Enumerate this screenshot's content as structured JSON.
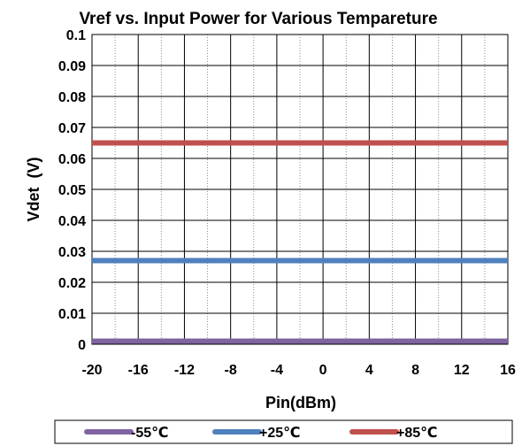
{
  "chart_data": {
    "type": "line",
    "title": "Vref vs. Input Power for Various Tempareture",
    "xlabel": "Pin(dBm)",
    "ylabel": "Vdet  (V)",
    "xlim": [
      -20,
      16
    ],
    "ylim": [
      0,
      0.1
    ],
    "x_ticks": [
      -20,
      -16,
      -12,
      -8,
      -4,
      0,
      4,
      8,
      12,
      16
    ],
    "x_tick_labels": [
      "-20",
      "-16",
      "-12",
      "-8",
      "-4",
      "0",
      "4",
      "8",
      "12",
      "16"
    ],
    "x_minor_step": 2,
    "y_ticks": [
      0,
      0.01,
      0.02,
      0.03,
      0.04,
      0.05,
      0.06,
      0.07,
      0.08,
      0.09,
      0.1
    ],
    "y_tick_labels": [
      "0",
      "0.01",
      "0.02",
      "0.03",
      "0.04",
      "0.05",
      "0.06",
      "0.07",
      "0.08",
      "0.09",
      "0.1"
    ],
    "grid": true,
    "legend_position": "bottom",
    "series": [
      {
        "name": "-55℃",
        "color": "#8064A2",
        "x": [
          -20,
          16
        ],
        "y": [
          0.001,
          0.001
        ]
      },
      {
        "name": "+25℃",
        "color": "#4F81BD",
        "x": [
          -20,
          16
        ],
        "y": [
          0.027,
          0.027
        ]
      },
      {
        "name": "+85℃",
        "color": "#C0504D",
        "x": [
          -20,
          16
        ],
        "y": [
          0.065,
          0.065
        ]
      }
    ]
  }
}
